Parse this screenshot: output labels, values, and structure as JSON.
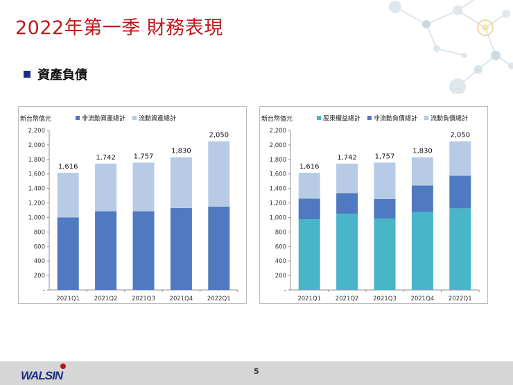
{
  "slide": {
    "title": "2022年第一季 財務表現",
    "section_label": "資產負債",
    "page_number": "5",
    "logo_text": "WALSIN"
  },
  "colors": {
    "title": "#c0161b",
    "bullet": "#1c2d84",
    "dark_blue": "#4f79c0",
    "light_blue": "#b7cbe6",
    "teal": "#48b5c9"
  },
  "chart_data": [
    {
      "type": "bar",
      "stacked": true,
      "unit_label": "新台幣億元",
      "categories": [
        "2021Q1",
        "2021Q2",
        "2021Q3",
        "2021Q4",
        "2022Q1"
      ],
      "ylim": [
        0,
        2200
      ],
      "yticks": [
        "-",
        "200",
        "400",
        "600",
        "800",
        "1,000",
        "1,200",
        "1,400",
        "1,600",
        "1,800",
        "2,000",
        "2,200"
      ],
      "series": [
        {
          "name": "非流動資產總計",
          "color": "#4f79c0",
          "values": [
            1000,
            1085,
            1085,
            1130,
            1150
          ]
        },
        {
          "name": "流動資產總計",
          "color": "#b7cbe6",
          "values": [
            616,
            657,
            672,
            700,
            900
          ]
        }
      ],
      "totals": [
        "1,616",
        "1,742",
        "1,757",
        "1,830",
        "2,050"
      ],
      "grid": false,
      "legend": "top"
    },
    {
      "type": "bar",
      "stacked": true,
      "unit_label": "新台幣億元",
      "categories": [
        "2021Q1",
        "2021Q2",
        "2021Q3",
        "2021Q4",
        "2022Q1"
      ],
      "ylim": [
        0,
        2200
      ],
      "yticks": [
        "-",
        "200",
        "400",
        "600",
        "800",
        "1,000",
        "1,200",
        "1,400",
        "1,600",
        "1,800",
        "2,000",
        "2,200"
      ],
      "series": [
        {
          "name": "股東權益總計",
          "color": "#48b5c9",
          "values": [
            975,
            1050,
            985,
            1075,
            1125
          ]
        },
        {
          "name": "非流動負債總計",
          "color": "#4f79c0",
          "values": [
            285,
            285,
            270,
            365,
            450
          ]
        },
        {
          "name": "流動負債總計",
          "color": "#b7cbe6",
          "values": [
            356,
            407,
            502,
            390,
            475
          ]
        }
      ],
      "totals": [
        "1,616",
        "1,742",
        "1,757",
        "1,830",
        "2,050"
      ],
      "grid": false,
      "legend": "top"
    }
  ]
}
